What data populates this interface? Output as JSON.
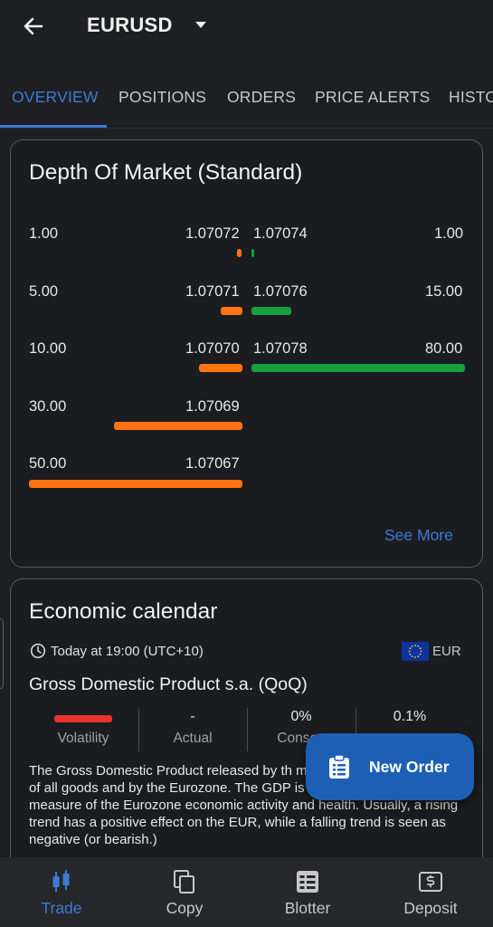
{
  "header": {
    "symbol": "EURUSD"
  },
  "tabs": [
    {
      "label": "OVERVIEW",
      "active": true
    },
    {
      "label": "POSITIONS"
    },
    {
      "label": "ORDERS"
    },
    {
      "label": "PRICE ALERTS"
    },
    {
      "label": "HISTO"
    }
  ],
  "depth_of_market": {
    "title": "Depth Of Market (Standard)",
    "rows": [
      {
        "bid_volume": "1.00",
        "bid_price": "1.07072",
        "ask_price": "1.07074",
        "ask_volume": "1.00"
      },
      {
        "bid_volume": "5.00",
        "bid_price": "1.07071",
        "ask_price": "1.07076",
        "ask_volume": "15.00"
      },
      {
        "bid_volume": "10.00",
        "bid_price": "1.07070",
        "ask_price": "1.07078",
        "ask_volume": "80.00"
      },
      {
        "bid_volume": "30.00",
        "bid_price": "1.07069"
      },
      {
        "bid_volume": "50.00",
        "bid_price": "1.07067"
      }
    ],
    "see_more": "See More",
    "colors": {
      "bid": "#ff7313",
      "ask": "#15a03e"
    }
  },
  "economic_calendar": {
    "title": "Economic calendar",
    "event_time": "Today at 19:00 (UTC+10)",
    "currency": "EUR",
    "event_name": "Gross Domestic Product s.a. (QoQ)",
    "stats": {
      "volatility_label": "Volatility",
      "actual_value": "-",
      "actual_label": "Actual",
      "consensus_value": "0%",
      "consensus_label": "Consen",
      "previous_value": "0.1%"
    },
    "description": "The Gross Domestic Product released by th measure of the total value of all goods and by the Eurozone. The GDP is considered as a broad measure of the Eurozone economic activity and health. Usually, a rising trend has a positive effect on the EUR, while a falling trend is seen as negative (or bearish.)"
  },
  "fab": {
    "label": "New Order"
  },
  "bottom_nav": [
    {
      "label": "Trade",
      "icon": "candlestick-icon",
      "active": true
    },
    {
      "label": "Copy",
      "icon": "copy-icon"
    },
    {
      "label": "Blotter",
      "icon": "blotter-icon"
    },
    {
      "label": "Deposit",
      "icon": "deposit-icon"
    }
  ]
}
